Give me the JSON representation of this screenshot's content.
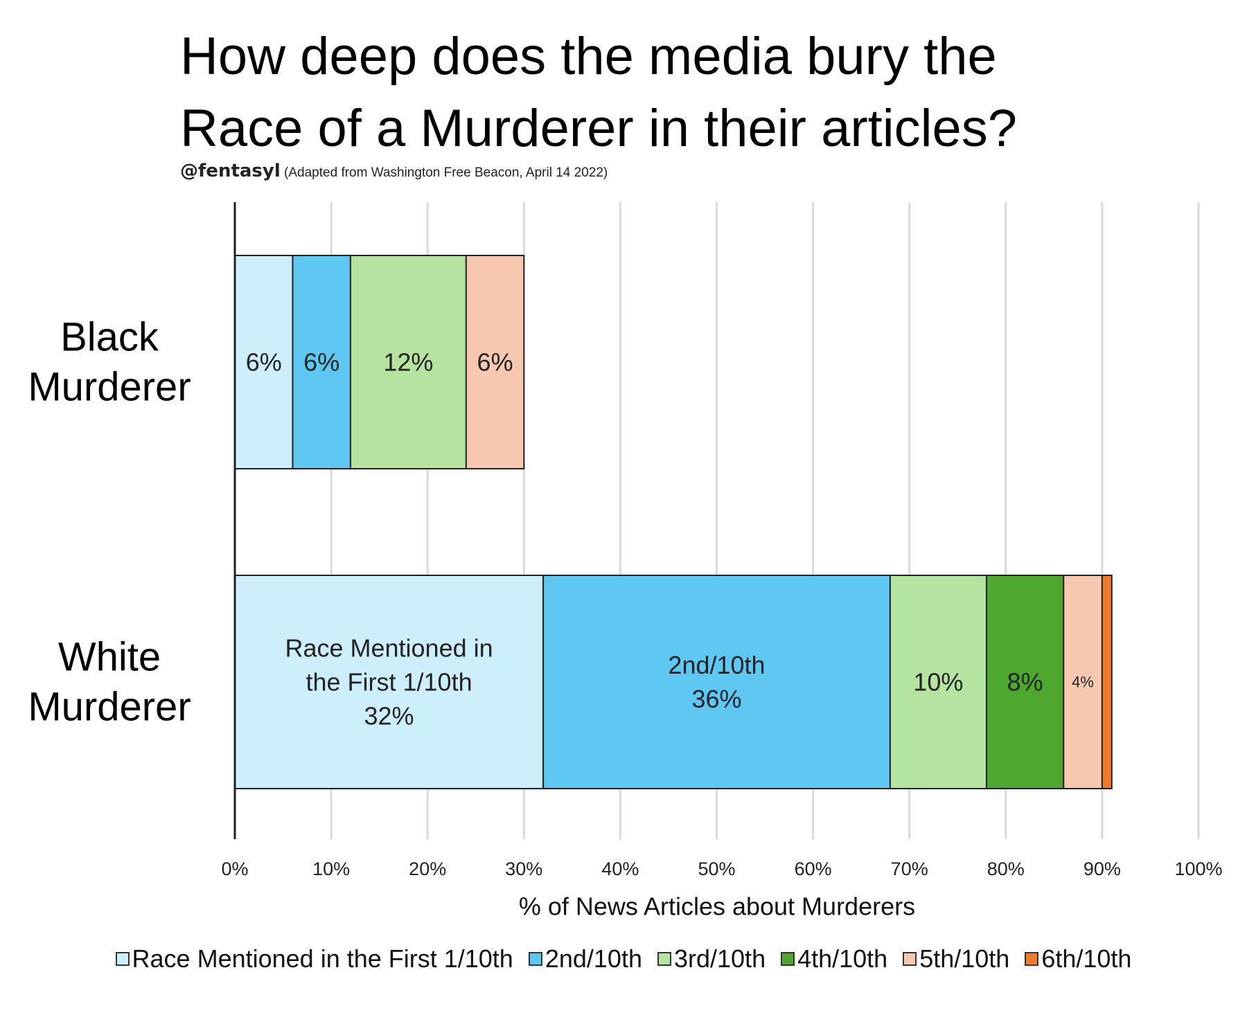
{
  "chart_data": {
    "type": "bar",
    "orientation": "horizontal",
    "stacked": true,
    "title": "How deep does the media bury the Race of a Murderer in their articles?",
    "title_lines": [
      "How deep does the media bury the",
      "Race of a Murderer in their articles?"
    ],
    "subtitle_handle": "@fentasyl",
    "subtitle_source": "(Adapted from Washington Free Beacon, April 14 2022)",
    "xlabel": "% of News Articles about Murderers",
    "xlim": [
      0,
      100
    ],
    "xticks": [
      "0%",
      "10%",
      "20%",
      "30%",
      "40%",
      "50%",
      "60%",
      "70%",
      "80%",
      "90%",
      "100%"
    ],
    "grid": "vertical",
    "legend_position": "bottom",
    "categories": [
      {
        "line1": "Black",
        "line2": "Murderer"
      },
      {
        "line1": "White",
        "line2": "Murderer"
      }
    ],
    "series": [
      {
        "name": "Race Mentioned in the First 1/10th",
        "color": "#cdeefb",
        "values": [
          6,
          32
        ],
        "labels": [
          [
            "6%"
          ],
          [
            "Race Mentioned in",
            "the First 1/10th",
            "32%"
          ]
        ],
        "label_sizes": [
          36,
          36
        ]
      },
      {
        "name": "2nd/10th",
        "color": "#5ec8f2",
        "values": [
          6,
          36
        ],
        "labels": [
          [
            "6%"
          ],
          [
            "2nd/10th",
            "36%"
          ]
        ],
        "label_sizes": [
          36,
          36
        ]
      },
      {
        "name": "3rd/10th",
        "color": "#b4e4a0",
        "values": [
          12,
          10
        ],
        "labels": [
          [
            "12%"
          ],
          [
            "10%"
          ]
        ],
        "label_sizes": [
          36,
          36
        ]
      },
      {
        "name": "4th/10th",
        "color": "#4ea72e",
        "values": [
          0,
          8
        ],
        "labels": [
          [],
          [
            "8%"
          ]
        ],
        "label_sizes": [
          36,
          36
        ]
      },
      {
        "name": "5th/10th",
        "color": "#f6c8af",
        "values": [
          6,
          4
        ],
        "labels": [
          [
            "6%"
          ],
          [
            "4%"
          ]
        ],
        "label_sizes": [
          36,
          22
        ]
      },
      {
        "name": "6th/10th",
        "color": "#ef7a2a",
        "values": [
          0,
          1
        ],
        "labels": [
          [],
          []
        ],
        "label_sizes": [
          36,
          36
        ]
      }
    ]
  }
}
